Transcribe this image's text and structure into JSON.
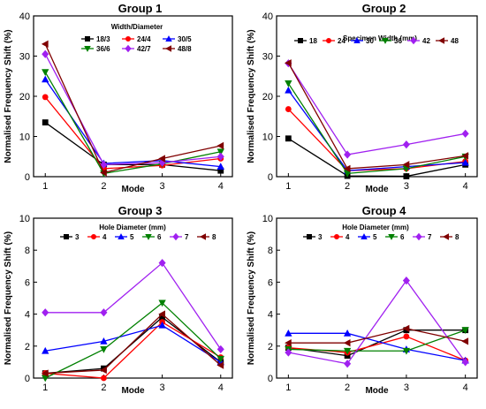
{
  "chart_data": [
    {
      "type": "line",
      "title": "Group 1",
      "xlabel": "Mode",
      "ylabel": "Normalised Frequency Shift (%)",
      "legend_title": "Width/Diameter",
      "legend_position": "top-right",
      "x": [
        1,
        2,
        3,
        4
      ],
      "xlim": [
        0.8,
        4.2
      ],
      "ylim": [
        0,
        40
      ],
      "yticks": [
        0,
        10,
        20,
        30,
        40
      ],
      "series": [
        {
          "name": "18/3",
          "color": "#000000",
          "marker": "square",
          "values": [
            13.5,
            3.0,
            3.0,
            1.5
          ]
        },
        {
          "name": "24/4",
          "color": "#ff0000",
          "marker": "circle",
          "values": [
            19.8,
            2.0,
            2.8,
            4.5
          ]
        },
        {
          "name": "30/5",
          "color": "#0000ff",
          "marker": "triangle-up",
          "values": [
            24.2,
            3.3,
            4.0,
            2.5
          ]
        },
        {
          "name": "36/6",
          "color": "#008000",
          "marker": "triangle-down",
          "values": [
            26.0,
            0.8,
            3.2,
            6.2
          ]
        },
        {
          "name": "42/7",
          "color": "#a020f0",
          "marker": "diamond",
          "values": [
            30.5,
            3.0,
            3.5,
            5.0
          ]
        },
        {
          "name": "48/8",
          "color": "#800000",
          "marker": "triangle-left",
          "values": [
            33.0,
            1.0,
            4.5,
            7.7
          ]
        }
      ]
    },
    {
      "type": "line",
      "title": "Group 2",
      "xlabel": "Mode",
      "ylabel": "Normalised Frequency Shift (%)",
      "legend_title": "Specimen Width (mm)",
      "legend_position": "top-right",
      "x": [
        1,
        2,
        3,
        4
      ],
      "xlim": [
        0.8,
        4.2
      ],
      "ylim": [
        0,
        40
      ],
      "yticks": [
        0,
        10,
        20,
        30,
        40
      ],
      "series": [
        {
          "name": "18",
          "color": "#000000",
          "marker": "square",
          "values": [
            9.5,
            0.2,
            0.1,
            3.0
          ]
        },
        {
          "name": "24",
          "color": "#ff0000",
          "marker": "circle",
          "values": [
            16.8,
            1.5,
            2.0,
            3.8
          ]
        },
        {
          "name": "30",
          "color": "#0000ff",
          "marker": "triangle-up",
          "values": [
            21.5,
            1.5,
            2.5,
            3.5
          ]
        },
        {
          "name": "36",
          "color": "#008000",
          "marker": "triangle-down",
          "values": [
            23.2,
            0.8,
            2.0,
            5.0
          ]
        },
        {
          "name": "42",
          "color": "#a020f0",
          "marker": "diamond",
          "values": [
            28.2,
            5.5,
            8.0,
            10.7
          ]
        },
        {
          "name": "48",
          "color": "#800000",
          "marker": "triangle-left",
          "values": [
            28.3,
            2.0,
            3.0,
            5.2
          ]
        }
      ]
    },
    {
      "type": "line",
      "title": "Group 3",
      "xlabel": "Mode",
      "ylabel": "Normalised Frequency Shift (%)",
      "legend_title": "Hole Diameter (mm)",
      "legend_position": "top-right",
      "x": [
        1,
        2,
        3,
        4
      ],
      "xlim": [
        0.8,
        4.2
      ],
      "ylim": [
        0,
        10
      ],
      "yticks": [
        0,
        2,
        4,
        6,
        8,
        10
      ],
      "series": [
        {
          "name": "3",
          "color": "#000000",
          "marker": "square",
          "values": [
            0.3,
            0.6,
            3.8,
            1.0
          ]
        },
        {
          "name": "4",
          "color": "#ff0000",
          "marker": "circle",
          "values": [
            0.3,
            0.0,
            3.5,
            1.3
          ]
        },
        {
          "name": "5",
          "color": "#0000ff",
          "marker": "triangle-up",
          "values": [
            1.7,
            2.3,
            3.3,
            1.0
          ]
        },
        {
          "name": "6",
          "color": "#008000",
          "marker": "triangle-down",
          "values": [
            0.0,
            1.8,
            4.7,
            1.2
          ]
        },
        {
          "name": "7",
          "color": "#a020f0",
          "marker": "diamond",
          "values": [
            4.1,
            4.1,
            7.2,
            1.8
          ]
        },
        {
          "name": "8",
          "color": "#800000",
          "marker": "triangle-left",
          "values": [
            0.3,
            0.5,
            4.0,
            0.8
          ]
        }
      ]
    },
    {
      "type": "line",
      "title": "Group 4",
      "xlabel": "Mode",
      "ylabel": "Normalised Frequency Shift (%)",
      "legend_title": "Hole Diameter (mm)",
      "legend_position": "top-right",
      "x": [
        1,
        2,
        3,
        4
      ],
      "xlim": [
        0.8,
        4.2
      ],
      "ylim": [
        0,
        10
      ],
      "yticks": [
        0,
        2,
        4,
        6,
        8,
        10
      ],
      "series": [
        {
          "name": "3",
          "color": "#000000",
          "marker": "square",
          "values": [
            1.9,
            1.4,
            3.0,
            3.0
          ]
        },
        {
          "name": "4",
          "color": "#ff0000",
          "marker": "circle",
          "values": [
            1.9,
            1.6,
            2.6,
            1.1
          ]
        },
        {
          "name": "5",
          "color": "#0000ff",
          "marker": "triangle-up",
          "values": [
            2.8,
            2.8,
            1.8,
            1.1
          ]
        },
        {
          "name": "6",
          "color": "#008000",
          "marker": "triangle-down",
          "values": [
            1.8,
            1.7,
            1.7,
            3.0
          ]
        },
        {
          "name": "7",
          "color": "#a020f0",
          "marker": "diamond",
          "values": [
            1.6,
            0.9,
            6.1,
            1.0
          ]
        },
        {
          "name": "8",
          "color": "#800000",
          "marker": "triangle-left",
          "values": [
            2.2,
            2.2,
            3.1,
            2.3
          ]
        }
      ]
    }
  ]
}
